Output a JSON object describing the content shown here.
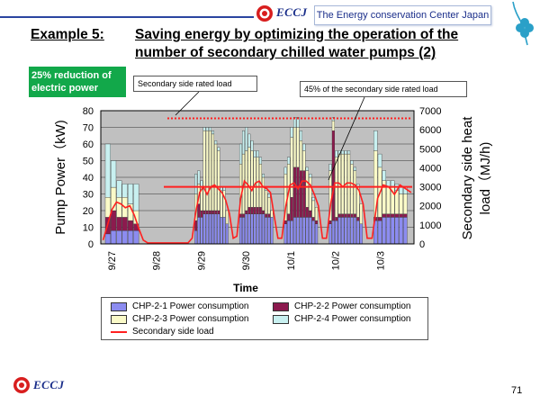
{
  "header": {
    "logo_text": "ECCJ",
    "organization": "The Energy conservation Center Japan"
  },
  "slide": {
    "title_label": "Example 5:",
    "title_line1": "Saving energy by optimizing the operation of the",
    "title_line2": "number of secondary chilled water pumps (2)",
    "highlight_line1": "25% reduction of",
    "highlight_line2": "electric power",
    "page_number": "71"
  },
  "footer": {
    "logo_text": "ECCJ"
  },
  "colors": {
    "chp1": "#8c8cf0",
    "chp2": "#8c1a4e",
    "chp3": "#fafac8",
    "chp4": "#c8f0f0",
    "secondary_load": "#ff2020",
    "rated_line": "#ff2020",
    "accent_green": "#12a84a",
    "brand_blue": "#1a2e8a"
  },
  "chart_data": {
    "type": "bar",
    "title": "",
    "xlabel": "Time",
    "ylabel": "Pump Power（kW)",
    "y2label_line1": "Secondary side heat",
    "y2label_line2": "load（MJ/h)",
    "ylim": [
      0,
      80
    ],
    "y2lim": [
      0,
      7000
    ],
    "yticks": [
      "0",
      "10",
      "20",
      "30",
      "40",
      "50",
      "60",
      "70",
      "80"
    ],
    "y2ticks": [
      "0",
      "1000",
      "2000",
      "3000",
      "4000",
      "5000",
      "6000",
      "7000"
    ],
    "x_tick_labels": [
      "9/27",
      "9/28",
      "9/29",
      "9/30",
      "10/1",
      "10/2",
      "10/3"
    ],
    "annotations": {
      "rated_load_label": "Secondary side rated load",
      "rated_load_value": 6600,
      "pct45_label": "45% of the secondary side rated load",
      "pct45_value": 3000
    },
    "days": [
      {
        "label": "9/27",
        "active": true,
        "chp1": [
          6,
          8,
          8,
          8,
          8,
          8
        ],
        "chp2": [
          10,
          12,
          8,
          8,
          6,
          4
        ],
        "chp3": [
          12,
          14,
          12,
          12,
          10,
          8
        ],
        "chp4": [
          32,
          16,
          10,
          8,
          12,
          16
        ],
        "load": [
          200,
          1000,
          1800,
          2200,
          2100,
          1900,
          2000,
          1500,
          800,
          200
        ]
      },
      {
        "label": "9/28",
        "active": false,
        "chp1": [],
        "chp2": [],
        "chp3": [],
        "chp4": [],
        "load": [
          50,
          50,
          50,
          50,
          50,
          50,
          50,
          50,
          50,
          50
        ]
      },
      {
        "label": "9/29",
        "active": true,
        "chp1": [
          8,
          16,
          16,
          18,
          18,
          18,
          18,
          18,
          18,
          16,
          16,
          12
        ],
        "chp2": [
          6,
          8,
          4,
          2,
          2,
          2,
          2,
          2,
          2,
          0,
          0,
          0
        ],
        "chp3": [
          16,
          12,
          14,
          48,
          48,
          48,
          46,
          40,
          36,
          16,
          16,
          8
        ],
        "chp4": [
          12,
          8,
          4,
          2,
          2,
          2,
          2,
          2,
          2,
          2,
          2,
          0
        ],
        "load": [
          300,
          1700,
          2700,
          3000,
          2600,
          3000,
          3100,
          2900,
          2700,
          2300,
          1600,
          300
        ]
      },
      {
        "label": "9/30",
        "active": true,
        "chp1": [
          16,
          16,
          18,
          18,
          18,
          18,
          18,
          18,
          18,
          16,
          16,
          16
        ],
        "chp2": [
          2,
          2,
          2,
          4,
          4,
          4,
          4,
          4,
          2,
          2,
          2,
          0
        ],
        "chp3": [
          30,
          36,
          36,
          36,
          34,
          30,
          30,
          26,
          20,
          14,
          10,
          4
        ],
        "chp4": [
          12,
          14,
          14,
          8,
          6,
          4,
          4,
          4,
          2,
          2,
          2,
          0
        ],
        "load": [
          400,
          2400,
          3300,
          3100,
          2800,
          3200,
          3300,
          3000,
          2900,
          2700,
          1500,
          300
        ]
      },
      {
        "label": "10/1",
        "active": true,
        "chp1": [
          12,
          14,
          14,
          16,
          16,
          16,
          16,
          16,
          16,
          14,
          12
        ],
        "chp2": [
          2,
          4,
          14,
          30,
          30,
          28,
          28,
          6,
          4,
          2,
          2
        ],
        "chp3": [
          28,
          30,
          36,
          24,
          24,
          18,
          12,
          22,
          20,
          10,
          8
        ],
        "chp4": [
          4,
          4,
          6,
          6,
          6,
          6,
          4,
          2,
          2,
          2,
          0
        ],
        "load": [
          300,
          2000,
          3100,
          3200,
          2900,
          3300,
          3300,
          3100,
          2600,
          2000,
          300
        ]
      },
      {
        "label": "10/2",
        "active": true,
        "chp1": [
          12,
          14,
          14,
          16,
          16,
          16,
          16,
          16,
          16,
          14,
          12
        ],
        "chp2": [
          2,
          54,
          2,
          2,
          2,
          2,
          2,
          2,
          2,
          2,
          0
        ],
        "chp3": [
          30,
          6,
          36,
          36,
          36,
          36,
          36,
          30,
          26,
          18,
          12
        ],
        "chp4": [
          4,
          2,
          4,
          2,
          2,
          2,
          2,
          2,
          2,
          2,
          0
        ],
        "load": [
          300,
          2100,
          3200,
          3200,
          3000,
          3200,
          3200,
          3100,
          2800,
          2100,
          300
        ]
      },
      {
        "label": "10/3",
        "active": true,
        "chp1": [
          14,
          14,
          16,
          16,
          16,
          16,
          16,
          16
        ],
        "chp2": [
          2,
          2,
          2,
          2,
          2,
          2,
          2,
          2
        ],
        "chp3": [
          40,
          30,
          20,
          16,
          16,
          14,
          12,
          12
        ],
        "chp4": [
          12,
          8,
          6,
          4,
          4,
          4,
          4,
          4
        ],
        "load": [
          300,
          2400,
          3100,
          3000,
          2600,
          3100,
          2900,
          2700
        ]
      }
    ]
  },
  "legend": {
    "chp1": "CHP-2-1 Power consumption",
    "chp2": "CHP-2-2 Power consumption",
    "chp3": "CHP-2-3 Power consumption",
    "chp4": "CHP-2-4 Power consumption",
    "load": "Secondary side load"
  }
}
